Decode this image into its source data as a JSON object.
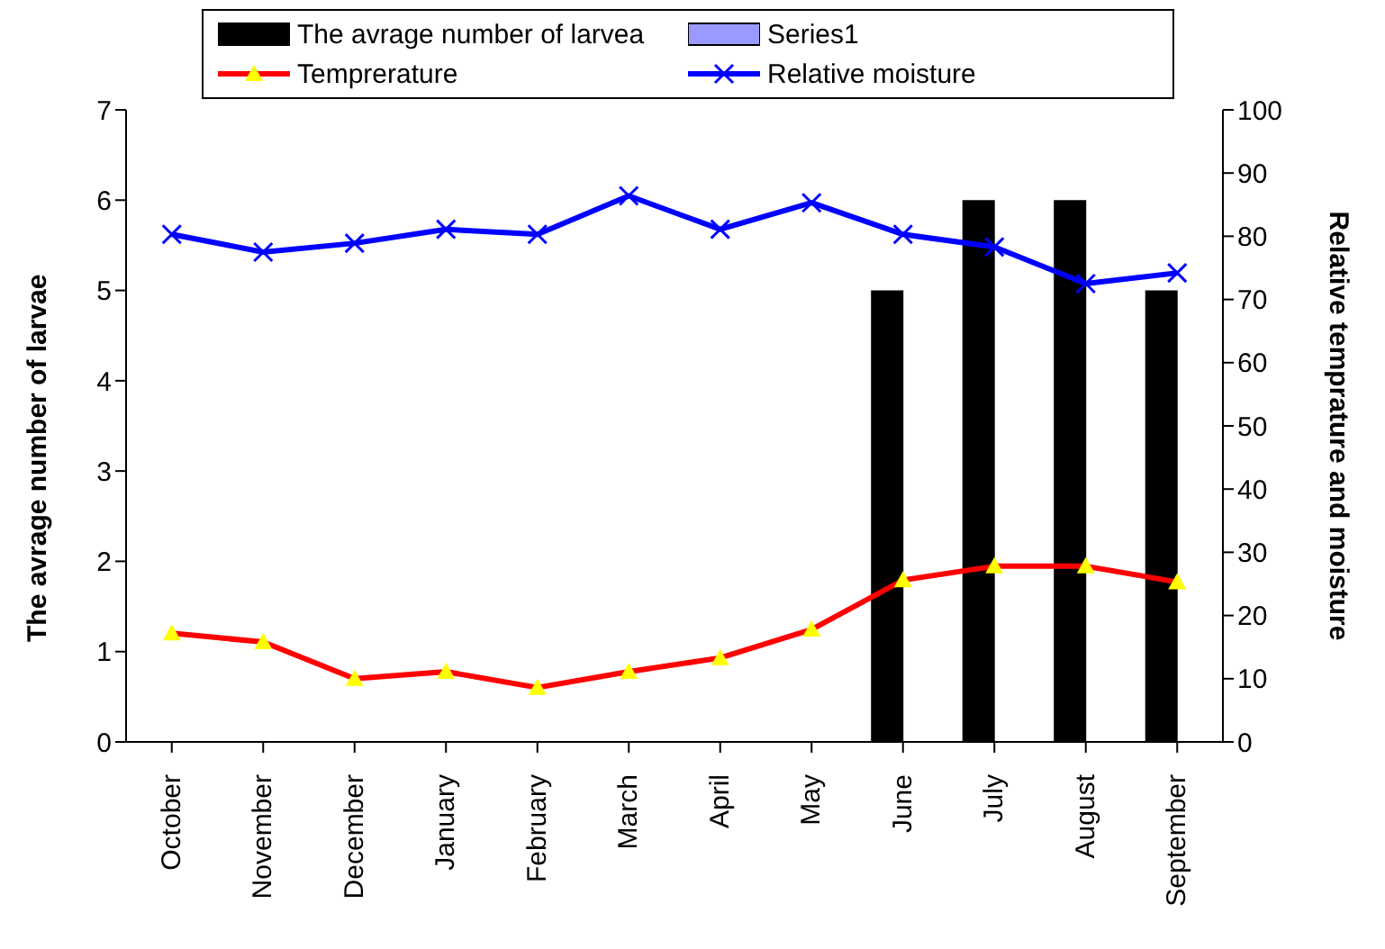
{
  "chart_data": {
    "type": "bar",
    "categories": [
      "October",
      "November",
      "December",
      "January",
      "February",
      "March",
      "April",
      "May",
      "June",
      "July",
      "August",
      "September"
    ],
    "ylabel": "The avrage number of larvae",
    "y2label": "Relative temprature and moisture",
    "ylim": [
      0,
      7
    ],
    "yticks": [
      0,
      1,
      2,
      3,
      4,
      5,
      6,
      7
    ],
    "y2lim": [
      0,
      100
    ],
    "y2ticks": [
      0,
      10,
      20,
      30,
      40,
      50,
      60,
      70,
      80,
      90,
      100
    ],
    "legend": "top",
    "series": [
      {
        "name": "The avrage number of larvea",
        "color": "#000000",
        "values": [
          null,
          null,
          null,
          null,
          null,
          null,
          null,
          null,
          5,
          6,
          6,
          5
        ]
      },
      {
        "name": "Series1",
        "color": "#9999ff",
        "values": [
          null,
          null,
          null,
          null,
          null,
          null,
          null,
          null,
          null,
          null,
          null,
          null
        ]
      },
      {
        "name": "Temprerature",
        "type": "line",
        "axis": "y2",
        "color": "#ff0000",
        "marker": "triangle",
        "values": [
          17.2,
          15.8,
          10,
          11.1,
          8.6,
          11.1,
          13.3,
          17.8,
          25.6,
          27.8,
          27.8,
          25.3
        ]
      },
      {
        "name": "Relative moisture",
        "type": "line",
        "axis": "y2",
        "color": "#0000ff",
        "marker": "cross",
        "values": [
          80.3,
          77.5,
          78.9,
          81.1,
          80.3,
          86.4,
          81.1,
          85.3,
          80.3,
          78.3,
          72.5,
          74.2
        ]
      }
    ]
  }
}
